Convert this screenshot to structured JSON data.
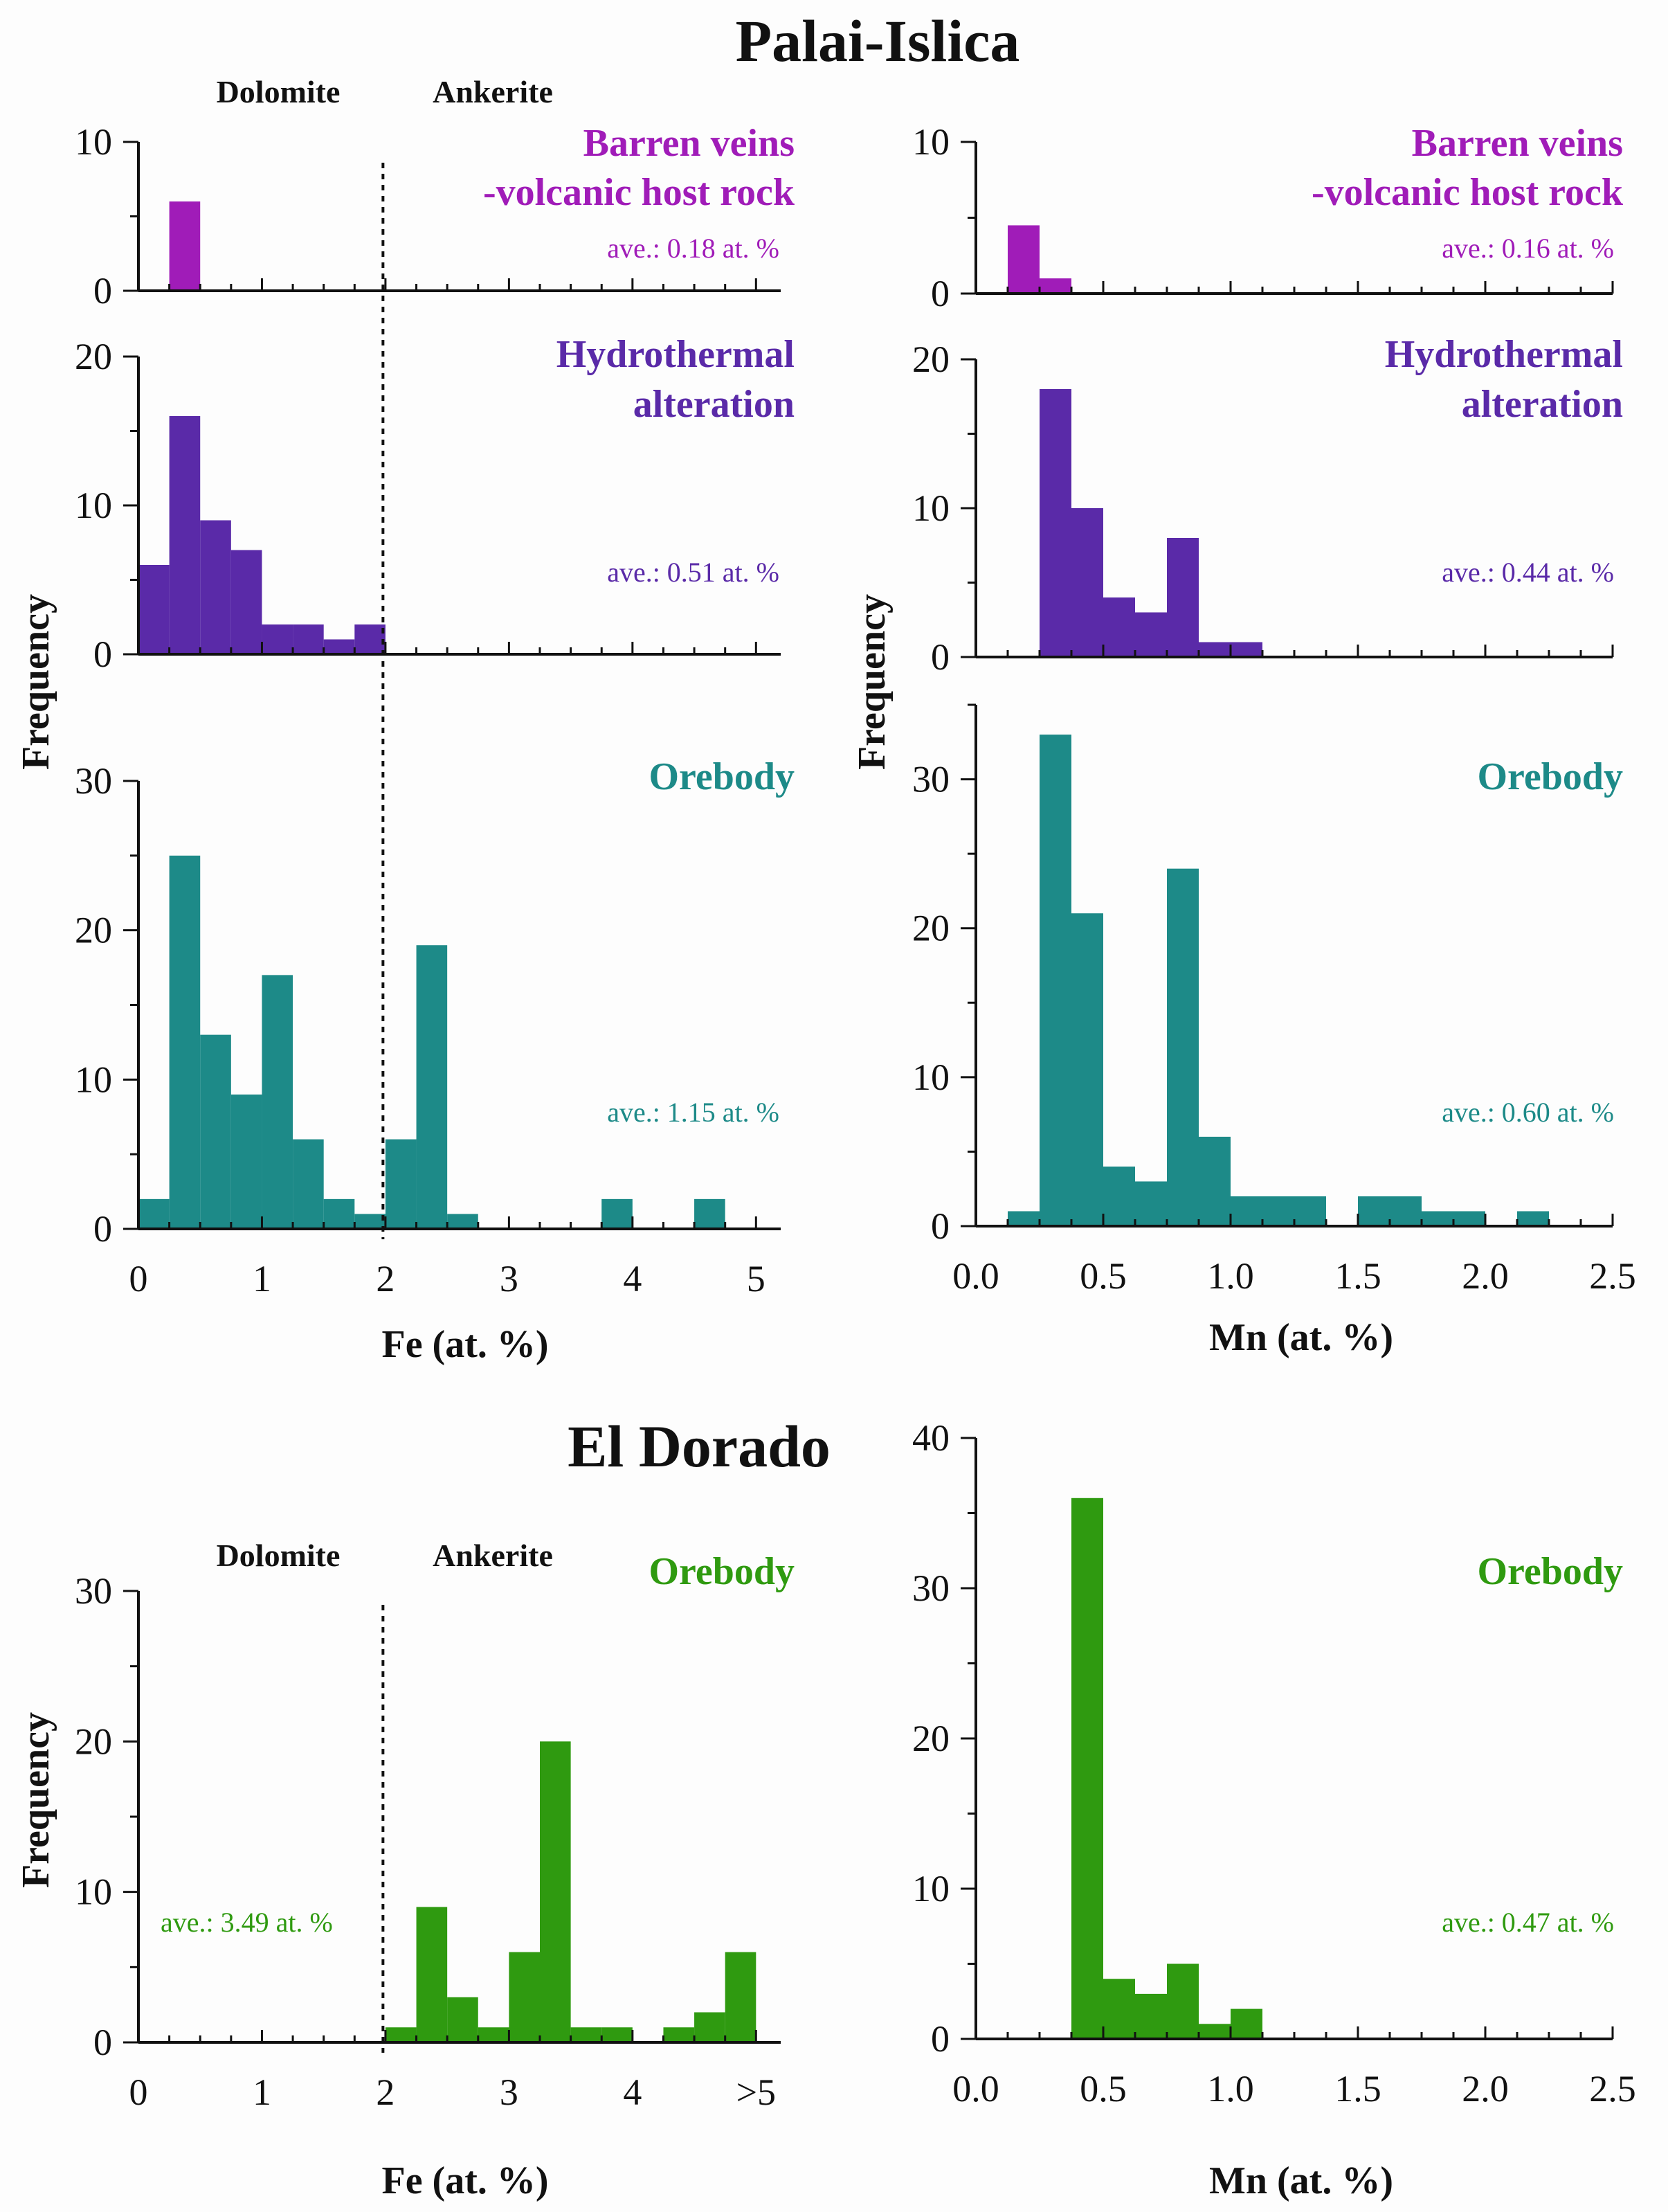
{
  "titles": {
    "palai": "Palai-Islica",
    "eldorado": "El Dorado"
  },
  "headers": {
    "dolomite": "Dolomite",
    "ankerite": "Ankerite"
  },
  "axes": {
    "fe": "Fe (at. %)",
    "mn": "Mn (at. %)",
    "freq": "Frequency"
  },
  "colors": {
    "barren": "#a01cb8",
    "hydro": "#5a2aa8",
    "orebody": "#1d8a88",
    "eldorado": "#2f9a10"
  },
  "chart_data": [
    {
      "type": "bar",
      "group": "Palai-Islica",
      "element": "Fe",
      "panel": "Barren veins -volcanic host rock",
      "label_lines": [
        "Barren veins",
        "-volcanic host rock"
      ],
      "avg_label": "ave.: 0.18 at. %",
      "xlim": [
        0,
        5.2
      ],
      "ylim": [
        0,
        10
      ],
      "yticks": [
        0,
        10
      ],
      "bin_width": 0.25,
      "bins": [
        [
          0.25,
          6
        ]
      ]
    },
    {
      "type": "bar",
      "group": "Palai-Islica",
      "element": "Fe",
      "panel": "Hydrothermal alteration",
      "label_lines": [
        "Hydrothermal",
        "alteration"
      ],
      "avg_label": "ave.: 0.51 at. %",
      "xlim": [
        0,
        5.2
      ],
      "ylim": [
        0,
        20
      ],
      "yticks": [
        0,
        10,
        20
      ],
      "bin_width": 0.25,
      "bins": [
        [
          0,
          6
        ],
        [
          0.25,
          16
        ],
        [
          0.5,
          9
        ],
        [
          0.75,
          7
        ],
        [
          1.0,
          2
        ],
        [
          1.25,
          2
        ],
        [
          1.5,
          1
        ],
        [
          1.75,
          2
        ]
      ]
    },
    {
      "type": "bar",
      "group": "Palai-Islica",
      "element": "Fe",
      "panel": "Orebody",
      "label_lines": [
        "Orebody"
      ],
      "avg_label": "ave.: 1.15 at. %",
      "xlim": [
        0,
        5.2
      ],
      "ylim": [
        0,
        30
      ],
      "yticks": [
        0,
        10,
        20,
        30
      ],
      "bin_width": 0.25,
      "xticks": [
        "0",
        "1",
        "2",
        "3",
        "4",
        "5"
      ],
      "xtick_values": [
        0,
        1,
        2,
        3,
        4,
        5
      ],
      "bins": [
        [
          0,
          2
        ],
        [
          0.25,
          25
        ],
        [
          0.5,
          13
        ],
        [
          0.75,
          9
        ],
        [
          1.0,
          17
        ],
        [
          1.25,
          6
        ],
        [
          1.5,
          2
        ],
        [
          1.75,
          1
        ],
        [
          2.0,
          6
        ],
        [
          2.25,
          19
        ],
        [
          2.5,
          1
        ],
        [
          3.75,
          2
        ],
        [
          4.5,
          2
        ]
      ]
    },
    {
      "type": "bar",
      "group": "Palai-Islica",
      "element": "Mn",
      "panel": "Barren veins -volcanic host rock",
      "label_lines": [
        "Barren veins",
        "-volcanic host rock"
      ],
      "avg_label": "ave.: 0.16 at. %",
      "xlim": [
        0,
        2.5
      ],
      "ylim": [
        0,
        10
      ],
      "yticks": [
        0,
        10
      ],
      "bin_width": 0.125,
      "bins": [
        [
          0.125,
          4.5
        ],
        [
          0.25,
          1
        ]
      ]
    },
    {
      "type": "bar",
      "group": "Palai-Islica",
      "element": "Mn",
      "panel": "Hydrothermal alteration",
      "label_lines": [
        "Hydrothermal",
        "alteration"
      ],
      "avg_label": "ave.: 0.44 at. %",
      "xlim": [
        0,
        2.5
      ],
      "ylim": [
        0,
        20
      ],
      "yticks": [
        0,
        10,
        20
      ],
      "bin_width": 0.125,
      "bins": [
        [
          0.25,
          18
        ],
        [
          0.375,
          10
        ],
        [
          0.5,
          4
        ],
        [
          0.625,
          3
        ],
        [
          0.75,
          8
        ],
        [
          0.875,
          1
        ],
        [
          1.0,
          1
        ]
      ]
    },
    {
      "type": "bar",
      "group": "Palai-Islica",
      "element": "Mn",
      "panel": "Orebody",
      "label_lines": [
        "Orebody"
      ],
      "avg_label": "ave.: 0.60 at. %",
      "xlim": [
        0,
        2.5
      ],
      "ylim": [
        0,
        35
      ],
      "yticks": [
        0,
        10,
        20,
        30
      ],
      "bin_width": 0.125,
      "xticks": [
        "0.0",
        "0.5",
        "1.0",
        "1.5",
        "2.0",
        "2.5"
      ],
      "xtick_values": [
        0,
        0.5,
        1.0,
        1.5,
        2.0,
        2.5
      ],
      "bins": [
        [
          0.125,
          1
        ],
        [
          0.25,
          33
        ],
        [
          0.375,
          21
        ],
        [
          0.5,
          4
        ],
        [
          0.625,
          3
        ],
        [
          0.75,
          24
        ],
        [
          0.875,
          6
        ],
        [
          1.0,
          2
        ],
        [
          1.125,
          2
        ],
        [
          1.25,
          2
        ],
        [
          1.5,
          2
        ],
        [
          1.625,
          2
        ],
        [
          1.75,
          1
        ],
        [
          1.875,
          1
        ],
        [
          2.125,
          1
        ]
      ]
    },
    {
      "type": "bar",
      "group": "El Dorado",
      "element": "Fe",
      "panel": "Orebody",
      "label_lines": [
        "Orebody"
      ],
      "avg_label": "ave.: 3.49 at. %",
      "xlim": [
        0,
        5.2
      ],
      "ylim": [
        0,
        30
      ],
      "yticks": [
        0,
        10,
        20,
        30
      ],
      "bin_width": 0.25,
      "xticks": [
        "0",
        "1",
        "2",
        "3",
        "4",
        ">5"
      ],
      "xtick_values": [
        0,
        1,
        2,
        3,
        4,
        5
      ],
      "bins": [
        [
          2.0,
          1
        ],
        [
          2.25,
          9
        ],
        [
          2.5,
          3
        ],
        [
          2.75,
          1
        ],
        [
          3.0,
          6
        ],
        [
          3.25,
          20
        ],
        [
          3.5,
          1
        ],
        [
          3.75,
          1
        ],
        [
          4.25,
          1
        ],
        [
          4.5,
          2
        ],
        [
          4.75,
          6
        ]
      ]
    },
    {
      "type": "bar",
      "group": "El Dorado",
      "element": "Mn",
      "panel": "Orebody",
      "label_lines": [
        "Orebody"
      ],
      "avg_label": "ave.: 0.47 at. %",
      "xlim": [
        0,
        2.5
      ],
      "ylim": [
        0,
        40
      ],
      "yticks": [
        0,
        10,
        20,
        30,
        40
      ],
      "bin_width": 0.125,
      "xticks": [
        "0.0",
        "0.5",
        "1.0",
        "1.5",
        "2.0",
        "2.5"
      ],
      "xtick_values": [
        0,
        0.5,
        1.0,
        1.5,
        2.0,
        2.5
      ],
      "bins": [
        [
          0.375,
          36
        ],
        [
          0.5,
          4
        ],
        [
          0.625,
          3
        ],
        [
          0.75,
          5
        ],
        [
          0.875,
          1
        ],
        [
          1.0,
          2
        ]
      ]
    }
  ]
}
